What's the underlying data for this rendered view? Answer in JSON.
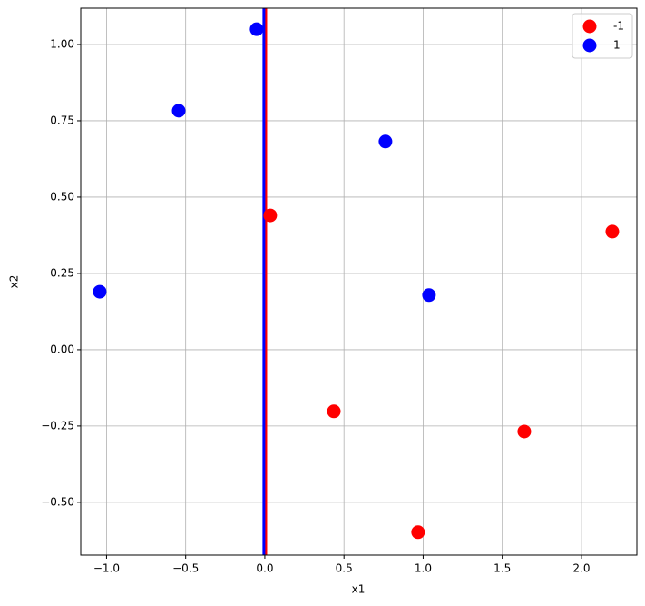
{
  "chart_data": {
    "type": "scatter",
    "xlabel": "x1",
    "ylabel": "x2",
    "xlim": [
      -1.163,
      2.35
    ],
    "ylim": [
      -0.673,
      1.119
    ],
    "xticks": [
      {
        "value": -1.0,
        "label": "−1.0"
      },
      {
        "value": -0.5,
        "label": "−0.5"
      },
      {
        "value": 0.0,
        "label": "0.0"
      },
      {
        "value": 0.5,
        "label": "0.5"
      },
      {
        "value": 1.0,
        "label": "1.0"
      },
      {
        "value": 1.5,
        "label": "1.5"
      },
      {
        "value": 2.0,
        "label": "2.0"
      }
    ],
    "yticks": [
      {
        "value": -0.5,
        "label": "−0.50"
      },
      {
        "value": -0.25,
        "label": "−0.25"
      },
      {
        "value": 0.0,
        "label": "0.00"
      },
      {
        "value": 0.25,
        "label": "0.25"
      },
      {
        "value": 0.5,
        "label": "0.50"
      },
      {
        "value": 0.75,
        "label": "0.75"
      },
      {
        "value": 1.0,
        "label": "1.00"
      }
    ],
    "grid": true,
    "legend": "upper right",
    "series": [
      {
        "name": "-1",
        "color": "red",
        "x": [
          0.034,
          0.436,
          0.968,
          1.639,
          2.195
        ],
        "values": [
          0.44,
          -0.202,
          -0.598,
          -0.268,
          0.387
        ]
      },
      {
        "name": "1",
        "color": "blue",
        "x": [
          -0.052,
          -0.544,
          -1.043,
          0.762,
          1.037
        ],
        "values": [
          1.05,
          0.783,
          0.19,
          0.682,
          0.179
        ]
      }
    ],
    "vlines": [
      {
        "color": "red",
        "x": 0.006
      },
      {
        "color": "blue",
        "x": -0.006
      }
    ]
  }
}
